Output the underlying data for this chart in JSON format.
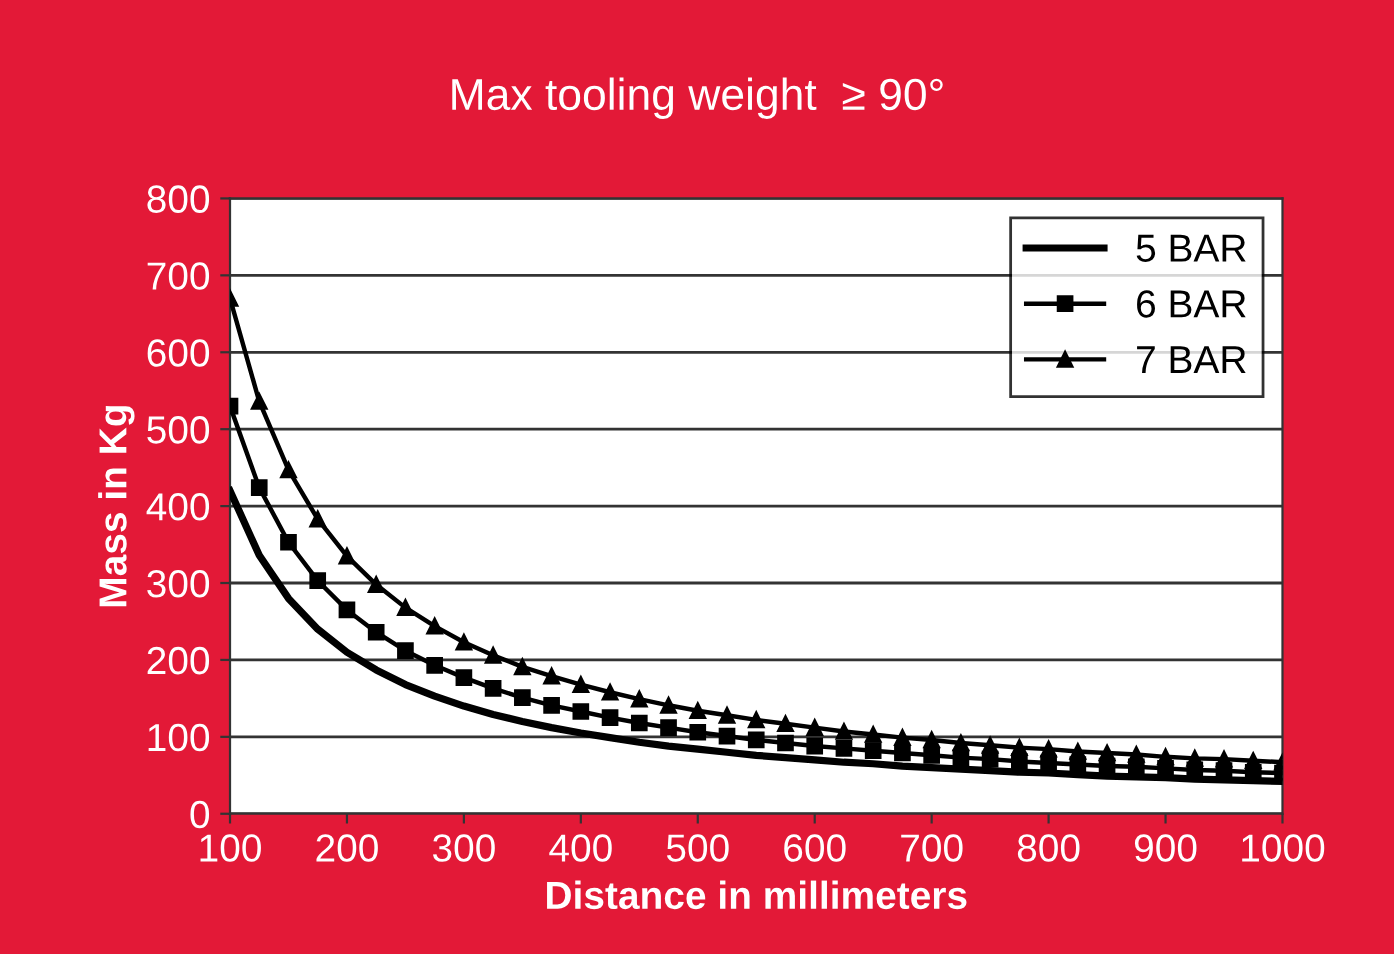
{
  "chart_data": {
    "type": "line",
    "subtitle": "Max tooling weight  ≥ 90°",
    "xlabel": "Distance in millimeters",
    "ylabel": "Mass in Kg",
    "x": [
      100,
      125,
      150,
      175,
      200,
      225,
      250,
      275,
      300,
      325,
      350,
      375,
      400,
      425,
      450,
      475,
      500,
      525,
      550,
      575,
      600,
      625,
      650,
      675,
      700,
      725,
      750,
      775,
      800,
      825,
      850,
      875,
      900,
      925,
      950,
      975,
      1000
    ],
    "series": [
      {
        "name": "5 BAR",
        "color": "#000000",
        "marker": "none",
        "values": [
          420,
          336,
          280,
          240,
          210,
          187,
          168,
          153,
          140,
          129,
          120,
          112,
          105,
          99,
          93,
          88,
          84,
          80,
          76,
          73,
          70,
          67,
          65,
          62,
          60,
          58,
          56,
          54,
          53,
          51,
          49,
          48,
          47,
          45,
          44,
          43,
          42
        ]
      },
      {
        "name": "6 BAR",
        "color": "#000000",
        "marker": "square",
        "values": [
          530,
          424,
          353,
          303,
          265,
          236,
          212,
          193,
          177,
          163,
          151,
          141,
          133,
          125,
          118,
          112,
          106,
          101,
          96,
          92,
          88,
          85,
          82,
          79,
          76,
          73,
          71,
          68,
          66,
          64,
          62,
          61,
          59,
          57,
          56,
          54,
          53
        ]
      },
      {
        "name": "7 BAR",
        "color": "#000000",
        "marker": "triangle",
        "values": [
          670,
          536,
          447,
          383,
          335,
          298,
          268,
          244,
          223,
          206,
          191,
          179,
          168,
          158,
          149,
          141,
          134,
          128,
          122,
          117,
          112,
          107,
          103,
          99,
          96,
          92,
          89,
          86,
          84,
          81,
          79,
          77,
          74,
          72,
          71,
          69,
          67
        ]
      }
    ],
    "xlim": [
      100,
      1000
    ],
    "xticks": [
      100,
      200,
      300,
      400,
      500,
      600,
      700,
      800,
      900,
      1000
    ],
    "ylim": [
      0,
      800
    ],
    "yticks": [
      0,
      100,
      200,
      300,
      400,
      500,
      600,
      700,
      800
    ],
    "grid": "y",
    "legend": "top right",
    "line_style": "solid"
  }
}
